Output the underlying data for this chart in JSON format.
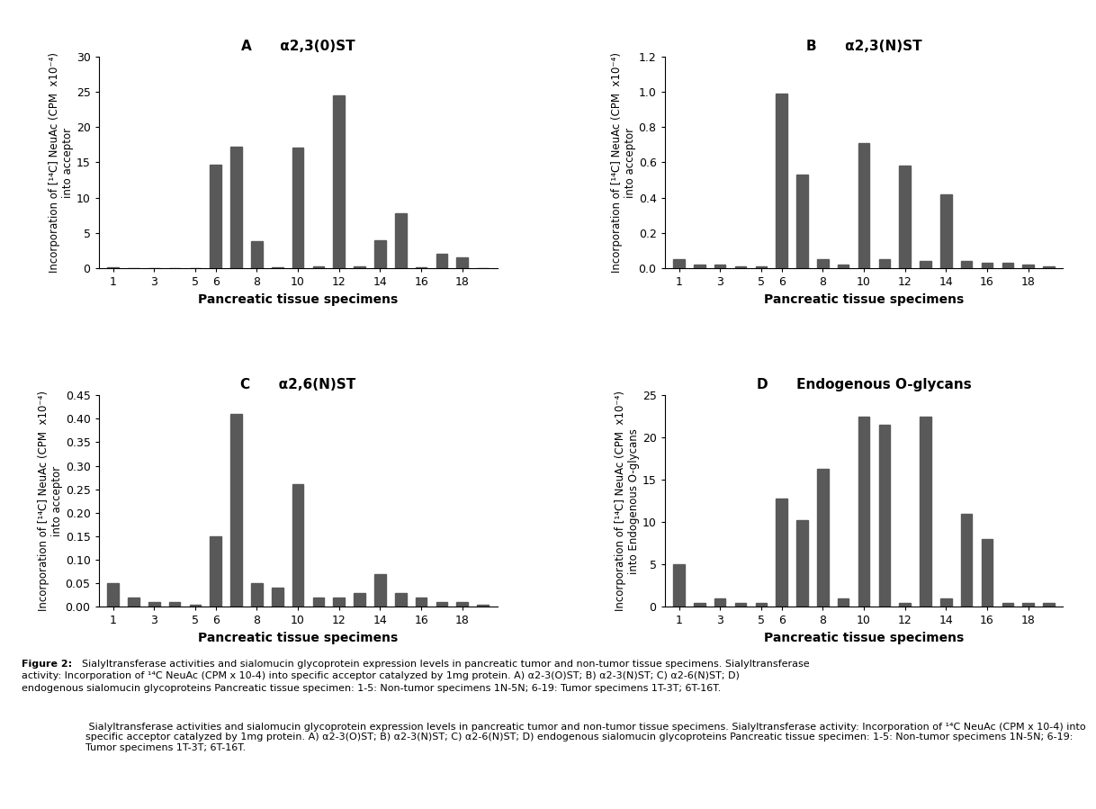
{
  "panel_A": {
    "title": "α2,3(0)ST",
    "label": "A",
    "specimens": [
      1,
      2,
      3,
      4,
      5,
      6,
      7,
      8,
      9,
      10,
      11,
      12,
      13,
      14,
      15,
      16,
      17,
      18,
      19
    ],
    "y": [
      0.1,
      0.0,
      0.0,
      0.0,
      0.0,
      14.7,
      17.2,
      3.8,
      0.1,
      17.1,
      0.2,
      24.5,
      0.2,
      4.0,
      7.8,
      0.1,
      2.1,
      1.5,
      0.0
    ],
    "ylim": [
      0,
      30
    ],
    "yticks": [
      0,
      5,
      10,
      15,
      20,
      25,
      30
    ],
    "ylabel_line1": "Incorporation of [",
    "ylabel": "Incorporation of [¹⁴C] NeuAc (CPM  x10⁻⁴)\ninto acceptor",
    "xlabel": "Pancreatic tissue specimens"
  },
  "panel_B": {
    "title": "α2,3(N)ST",
    "label": "B",
    "specimens": [
      1,
      2,
      3,
      4,
      5,
      6,
      7,
      8,
      9,
      10,
      11,
      12,
      13,
      14,
      15,
      16,
      17,
      18,
      19
    ],
    "y": [
      0.05,
      0.02,
      0.02,
      0.01,
      0.01,
      0.99,
      0.53,
      0.05,
      0.02,
      0.71,
      0.05,
      0.58,
      0.04,
      0.42,
      0.04,
      0.03,
      0.03,
      0.02,
      0.01
    ],
    "ylim": [
      0,
      1.2
    ],
    "yticks": [
      0,
      0.2,
      0.4,
      0.6,
      0.8,
      1.0,
      1.2
    ],
    "ylabel": "Incorporation of [¹⁴C] NeuAc (CPM  x10⁻⁴)\ninto acceptor",
    "xlabel": "Pancreatic tissue specimens"
  },
  "panel_C": {
    "title": "α2,6(N)ST",
    "label": "C",
    "specimens": [
      1,
      2,
      3,
      4,
      5,
      6,
      7,
      8,
      9,
      10,
      11,
      12,
      13,
      14,
      15,
      16,
      17,
      18,
      19
    ],
    "y": [
      0.05,
      0.02,
      0.01,
      0.01,
      0.005,
      0.15,
      0.41,
      0.05,
      0.04,
      0.26,
      0.02,
      0.02,
      0.03,
      0.07,
      0.03,
      0.02,
      0.01,
      0.01,
      0.005
    ],
    "ylim": [
      0,
      0.45
    ],
    "yticks": [
      0,
      0.05,
      0.1,
      0.15,
      0.2,
      0.25,
      0.3,
      0.35,
      0.4,
      0.45
    ],
    "ylabel": "Incorporation of [¹⁴C] NeuAc (CPM  x10⁻⁴)\ninto acceptor",
    "xlabel": "Pancreatic tissue specimens"
  },
  "panel_D": {
    "title": "Endogenous O-glycans",
    "label": "D",
    "specimens": [
      1,
      2,
      3,
      4,
      5,
      6,
      7,
      8,
      9,
      10,
      11,
      12,
      13,
      14,
      15,
      16,
      17,
      18,
      19
    ],
    "y": [
      5.0,
      0.5,
      1.0,
      0.5,
      0.5,
      12.8,
      10.2,
      16.3,
      1.0,
      22.5,
      21.5,
      0.5,
      22.5,
      1.0,
      11.0,
      8.0,
      0.5,
      0.5,
      0.5
    ],
    "ylim": [
      0,
      25
    ],
    "yticks": [
      0,
      5,
      10,
      15,
      20,
      25
    ],
    "ylabel": "Incorporation of [¹⁴C] NeuAc (CPM  x10⁻⁴)\ninto Endogenous O-glycans",
    "xlabel": "Pancreatic tissue specimens"
  },
  "xtick_positions": [
    1,
    3,
    5,
    6,
    8,
    10,
    12,
    14,
    16,
    18
  ],
  "xtick_labels": [
    "1",
    "3",
    "5",
    "6",
    "8",
    "10",
    "12",
    "14",
    "16",
    "18"
  ],
  "bar_color": "#595959",
  "bar_width": 0.55,
  "background_color": "#ffffff",
  "caption_bold": "Figure 2:",
  "caption_rest": " Sialyltransferase activities and sialomucin glycoprotein expression levels in pancreatic tumor and non-tumor tissue specimens. Sialyltransferase activity: Incorporation of ¹⁴C NeuAc (CPM x 10-4) into specific acceptor catalyzed by 1mg protein. A) α2-3(O)ST; B) α2-3(N)ST; C) α2-6(N)ST; D) endogenous sialomucin glycoproteins Pancreatic tissue specimen: 1-5: Non-tumor specimens 1N-5N; 6-19: Tumor specimens 1T-3T; 6T-16T."
}
